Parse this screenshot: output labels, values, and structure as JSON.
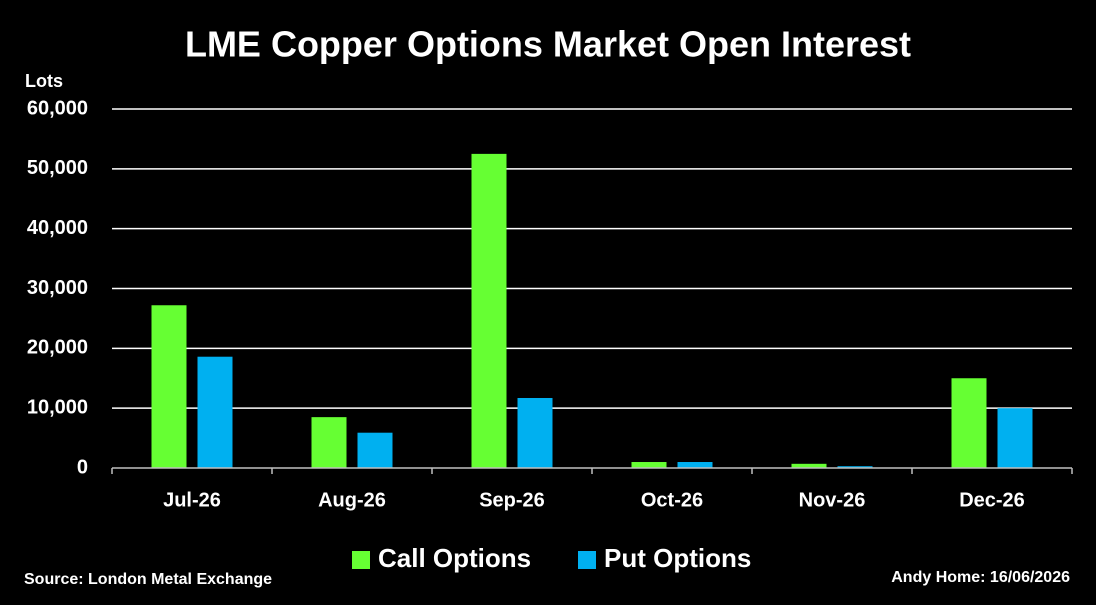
{
  "chart_data": {
    "type": "bar",
    "title": "LME Copper Options Market Open Interest",
    "ylabel": "Lots",
    "categories": [
      "Jul-26",
      "Aug-26",
      "Sep-26",
      "Oct-26",
      "Nov-26",
      "Dec-26"
    ],
    "series": [
      {
        "name": "Call Options",
        "color": "#66ff33",
        "values": [
          27200,
          8500,
          52500,
          1000,
          700,
          15000
        ]
      },
      {
        "name": "Put Options",
        "color": "#00b0f0",
        "values": [
          18600,
          5900,
          11700,
          1000,
          300,
          10000
        ]
      }
    ],
    "ylim": [
      0,
      60000
    ],
    "yticks": [
      0,
      {
        "value": 10000,
        "label": "10,000"
      },
      {
        "value": 20000,
        "label": "20,000"
      },
      {
        "value": 30000,
        "label": "30,000"
      },
      {
        "value": 40000,
        "label": "40,000"
      },
      {
        "value": 50000,
        "label": "50,000"
      },
      {
        "value": 60000,
        "label": "60,000"
      }
    ],
    "grid": true,
    "legend": "bottom",
    "source": "Source: London Metal Exchange",
    "credit": "Andy Home: 16/06/2026"
  }
}
